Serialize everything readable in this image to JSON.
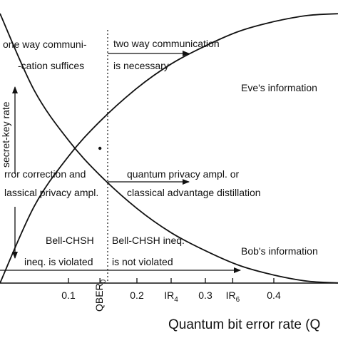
{
  "chart_data": {
    "type": "line",
    "title": "",
    "xlabel": "Quantum bit error rate (Q",
    "ylabel": "",
    "xlim": [
      0,
      0.5
    ],
    "ylim": [
      0,
      1
    ],
    "x_ticks": [
      {
        "value": 0.1,
        "label": "0.1"
      },
      {
        "value": 0.2,
        "label": "0.2"
      },
      {
        "value": 0.3,
        "label": "0.3"
      },
      {
        "value": 0.4,
        "label": "0.4"
      }
    ],
    "x_special_ticks": [
      {
        "value": 0.146,
        "label": "QBER",
        "sub": "0"
      },
      {
        "value": 0.25,
        "label": "IR",
        "sub": "4"
      },
      {
        "value": 0.34,
        "label": "IR",
        "sub": "6"
      }
    ],
    "grid": false,
    "series": [
      {
        "name": "Eve's information",
        "x": [
          0,
          0.05,
          0.1,
          0.146,
          0.2,
          0.25,
          0.3,
          0.35,
          0.4,
          0.45,
          0.5
        ],
        "y": [
          0,
          0.285,
          0.47,
          0.6,
          0.723,
          0.813,
          0.88,
          0.935,
          0.97,
          0.993,
          1.0
        ]
      },
      {
        "name": "Bob's information",
        "x": [
          0,
          0.05,
          0.1,
          0.146,
          0.2,
          0.25,
          0.3,
          0.35,
          0.4,
          0.45,
          0.5
        ],
        "y": [
          1.0,
          0.715,
          0.53,
          0.4,
          0.277,
          0.187,
          0.12,
          0.065,
          0.03,
          0.007,
          0.0
        ]
      }
    ],
    "annotations": {
      "left_top_1": "one way communi-",
      "left_top_2": "-cation suffices",
      "right_top_1": "two way communication",
      "right_top_2": "is necessary",
      "secret_key": "secret-key rate",
      "left_mid_1": "rror correction and",
      "left_mid_2": "lassical privacy ampl.",
      "right_mid_1": "quantum privacy ampl. or",
      "right_mid_2": "classical advantage distillation",
      "left_bot_1": "Bell-CHSH",
      "left_bot_2": "ineq. is violated",
      "right_bot_1": "Bell-CHSH ineq.",
      "right_bot_2": "is not violated",
      "eve_label": "Eve's information",
      "bob_label": "Bob's information"
    }
  }
}
